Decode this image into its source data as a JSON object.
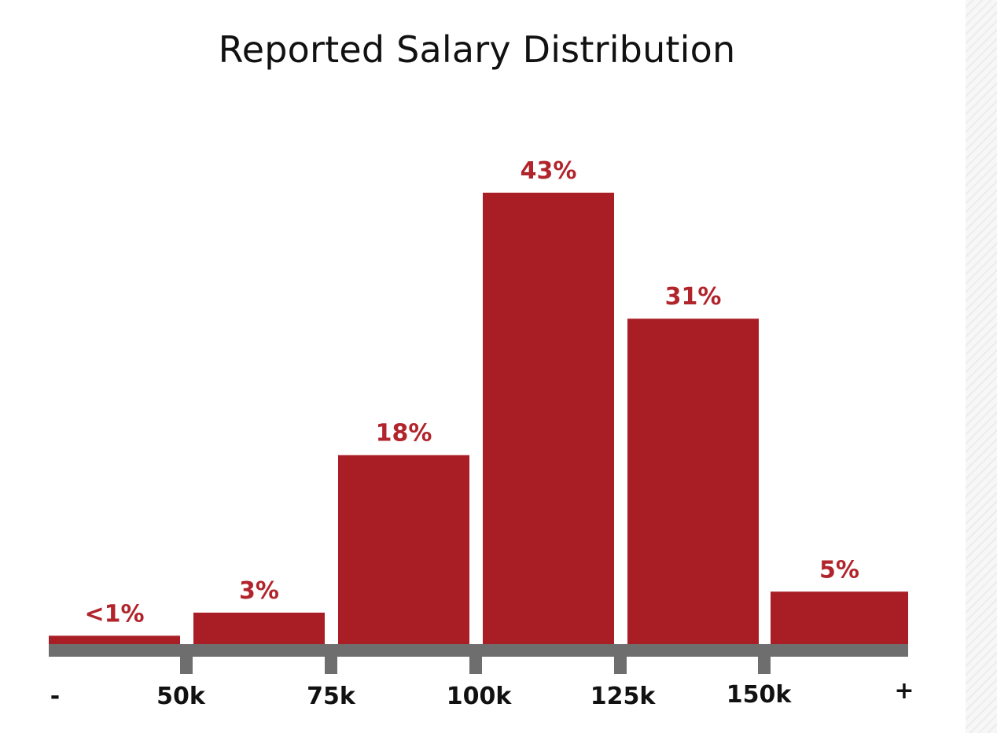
{
  "chart_data": {
    "type": "bar",
    "title": "Reported Salary Distribution",
    "xlabel": "",
    "ylabel": "",
    "bins": [
      "- to 50k",
      "50k to 75k",
      "75k to 100k",
      "100k to 125k",
      "125k to 150k",
      "150k to +"
    ],
    "values": [
      0.8,
      3,
      18,
      43,
      31,
      5
    ],
    "value_labels": [
      "<1%",
      "3%",
      "18%",
      "43%",
      "31%",
      "5%"
    ],
    "x_tick_labels": [
      "-",
      "50k",
      "75k",
      "100k",
      "125k",
      "150k",
      "+"
    ],
    "ylim": [
      0,
      43
    ],
    "grid": false,
    "legend": "none",
    "colors": {
      "bar": "#a91e25",
      "value_label": "#b2242c",
      "axis": "#6e6e6e",
      "tick_label": "#111111"
    }
  }
}
